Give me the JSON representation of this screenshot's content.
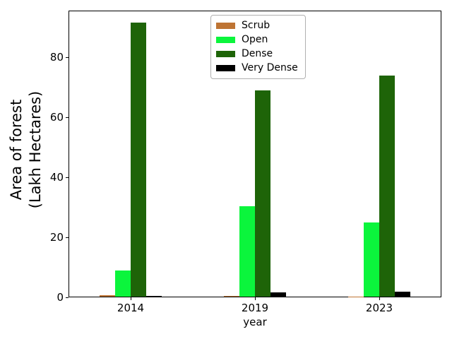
{
  "figure": {
    "background": "#ffffff",
    "spine_color": "#000000"
  },
  "chart_data": {
    "type": "bar",
    "title": "",
    "xlabel": "year",
    "ylabel": "Area of forest\n(Lakh Hectares)",
    "ylabel_lines": [
      "Area of forest",
      "(Lakh Hectares)"
    ],
    "categories": [
      "2014",
      "2019",
      "2023"
    ],
    "series": [
      {
        "name": "Scrub",
        "color": "#BE7434",
        "values": [
          0.55,
          0.35,
          0.05
        ]
      },
      {
        "name": "Open",
        "color": "#0BF53C",
        "values": [
          8.6,
          30.0,
          24.7
        ]
      },
      {
        "name": "Dense",
        "color": "#1E6408",
        "values": [
          91.3,
          68.6,
          73.6
        ]
      },
      {
        "name": "Very Dense",
        "color": "#000000",
        "values": [
          0.25,
          1.4,
          1.6
        ]
      }
    ],
    "ylim": [
      0,
      95.5
    ],
    "yticks": [
      0,
      20,
      40,
      60,
      80
    ],
    "grid": false,
    "legend_position": "upper center",
    "bar_width_fraction": 0.125,
    "bar_group_offsets": [
      -2,
      -1,
      0,
      1
    ]
  }
}
